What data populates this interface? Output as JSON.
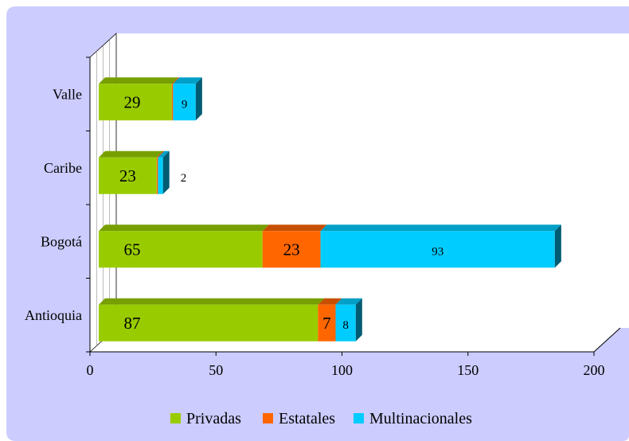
{
  "chart_data": {
    "type": "bar",
    "orientation": "horizontal",
    "stacked": true,
    "style": "3d",
    "title": "",
    "xlabel": "",
    "ylabel": "",
    "categories": [
      "Valle",
      "Caribe",
      "Bogotá",
      "Antioquia"
    ],
    "series": [
      {
        "name": "Privadas",
        "values": [
          29,
          23,
          65,
          87
        ],
        "color": "#99cc00"
      },
      {
        "name": "Estatales",
        "values": [
          0.5,
          0.5,
          23,
          7
        ],
        "color": "#ff6600"
      },
      {
        "name": "Multinacionales",
        "values": [
          9,
          2,
          93,
          8
        ],
        "color": "#00ccff"
      }
    ],
    "data_labels": [
      [
        "29",
        "",
        "9"
      ],
      [
        "23",
        "",
        "2"
      ],
      [
        "65",
        "23",
        "93"
      ],
      [
        "87",
        "7",
        "8"
      ]
    ],
    "xlim": [
      0,
      200
    ],
    "xticks": [
      "0",
      "50",
      "100",
      "150",
      "200"
    ],
    "legend": "bottom",
    "background_color": "#ccccff",
    "plot_area_color": "#ffffff",
    "grid": false
  }
}
